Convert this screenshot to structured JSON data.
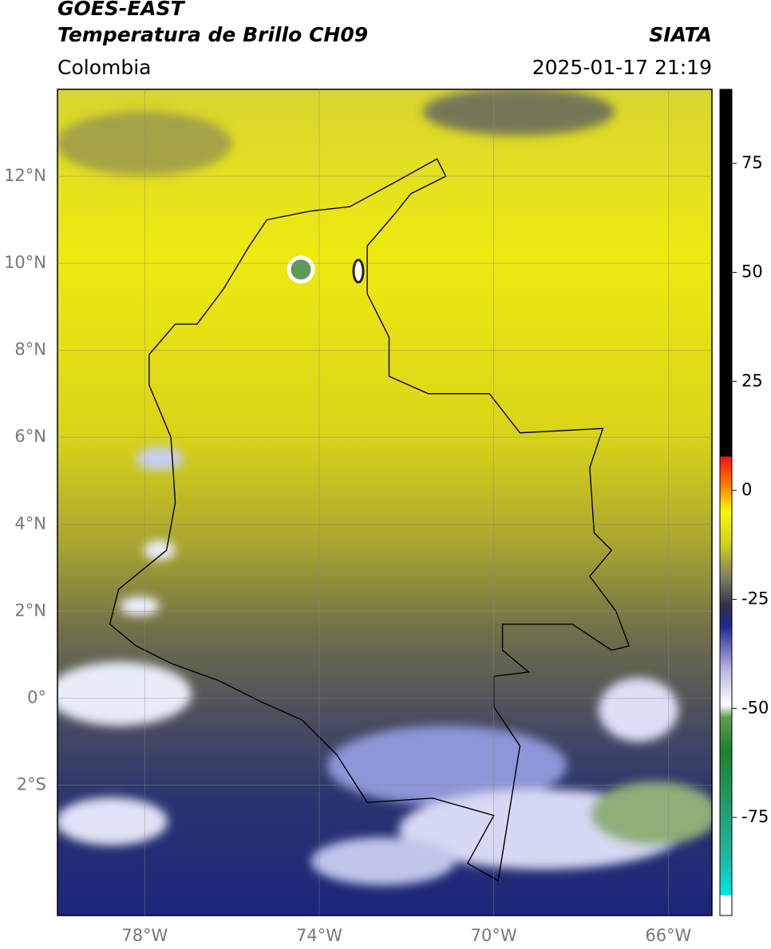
{
  "header": {
    "title": "GOES-EAST",
    "subtitle": "Temperatura de Brillo CH09",
    "region": "Colombia",
    "source": "SIATA",
    "datetime": "2025-01-17 21:19"
  },
  "map": {
    "lonlim": [
      -80,
      -65
    ],
    "latlim": [
      -5,
      14
    ],
    "lat_ticks": [
      {
        "value": 12,
        "label": "12°N"
      },
      {
        "value": 10,
        "label": "10°N"
      },
      {
        "value": 8,
        "label": "8°N"
      },
      {
        "value": 6,
        "label": "6°N"
      },
      {
        "value": 4,
        "label": "4°N"
      },
      {
        "value": 2,
        "label": "2°N"
      },
      {
        "value": 0,
        "label": "0°"
      },
      {
        "value": -2,
        "label": "2°S"
      }
    ],
    "lon_ticks": [
      {
        "value": -78,
        "label": "78°W"
      },
      {
        "value": -74,
        "label": "74°W"
      },
      {
        "value": -70,
        "label": "70°W"
      },
      {
        "value": -66,
        "label": "66°W"
      }
    ]
  },
  "colorbar": {
    "lim": [
      -97.5,
      92
    ],
    "ticks": [
      75,
      50,
      25,
      0,
      -25,
      -50,
      -75
    ]
  }
}
